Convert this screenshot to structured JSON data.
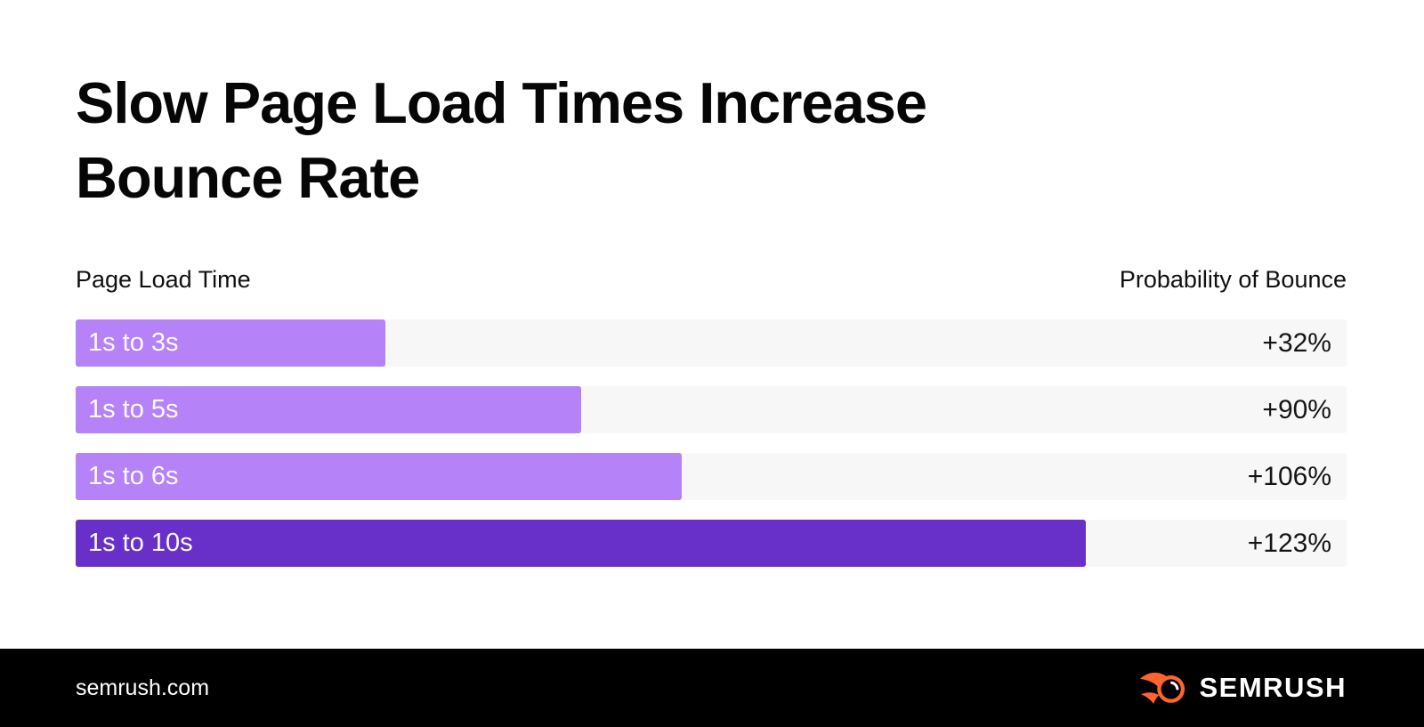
{
  "title": {
    "line1": "Slow Page Load Times Increase",
    "line2": "Bounce Rate"
  },
  "chart": {
    "left_header": "Page Load Time",
    "right_header": "Probability of Bounce"
  },
  "chart_data": {
    "type": "bar",
    "orientation": "horizontal",
    "title": "Slow Page Load Times Increase Bounce Rate",
    "categories": [
      "1s to 3s",
      "1s to 5s",
      "1s to 6s",
      "1s to 10s"
    ],
    "values": [
      32,
      90,
      106,
      123
    ],
    "value_labels": [
      "+32%",
      "+90%",
      "+106%",
      "+123%"
    ],
    "bar_lengths_pct": [
      24.4,
      39.8,
      47.7,
      79.5
    ],
    "bar_colors": [
      "#B582F7",
      "#B582F7",
      "#B582F7",
      "#6830C8"
    ],
    "track_color": "#F7F7F7",
    "legend": "none",
    "grid": "off"
  },
  "footer": {
    "website": "semrush.com",
    "logo": {
      "text": "SEMRUSH",
      "icon": "semrush-flame-icon",
      "icon_color": "#FF642D",
      "background": "#000000"
    }
  }
}
